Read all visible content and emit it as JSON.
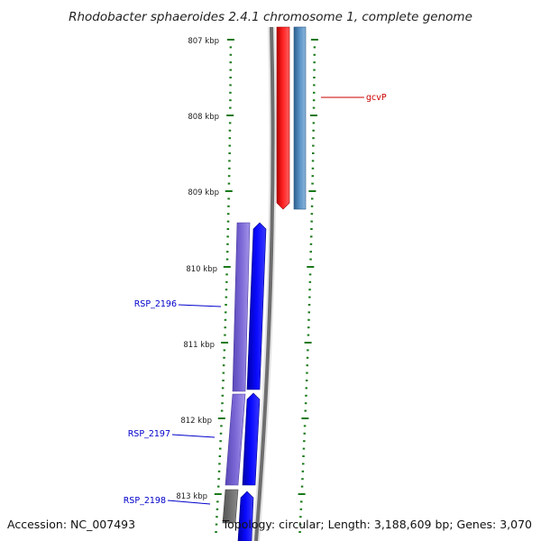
{
  "title": "Rhodobacter sphaeroides 2.4.1 chromosome 1, complete genome",
  "footer": {
    "accession": "Accession: NC_007493",
    "info": "Topology: circular; Length: 3,188,609 bp; Genes: 3,070"
  },
  "ticks": [
    "807 kbp",
    "808 kbp",
    "809 kbp",
    "810 kbp",
    "811 kbp",
    "812 kbp",
    "813 kbp"
  ],
  "features": [
    {
      "label": "gcvP",
      "color": "#cc0000"
    },
    {
      "label": "RSP_2196",
      "color": "#0000cc"
    },
    {
      "label": "RSP_2197",
      "color": "#0000cc"
    },
    {
      "label": "RSP_2198",
      "color": "#0000cc"
    }
  ],
  "colors": {
    "forward_cds": "#ff0000",
    "reverse_cds": "#0000ff",
    "forward_gene": "#4f83b4",
    "reverse_gene": "#7b68d6",
    "backbone": "#707070",
    "ticks": "#1a7a1a"
  }
}
